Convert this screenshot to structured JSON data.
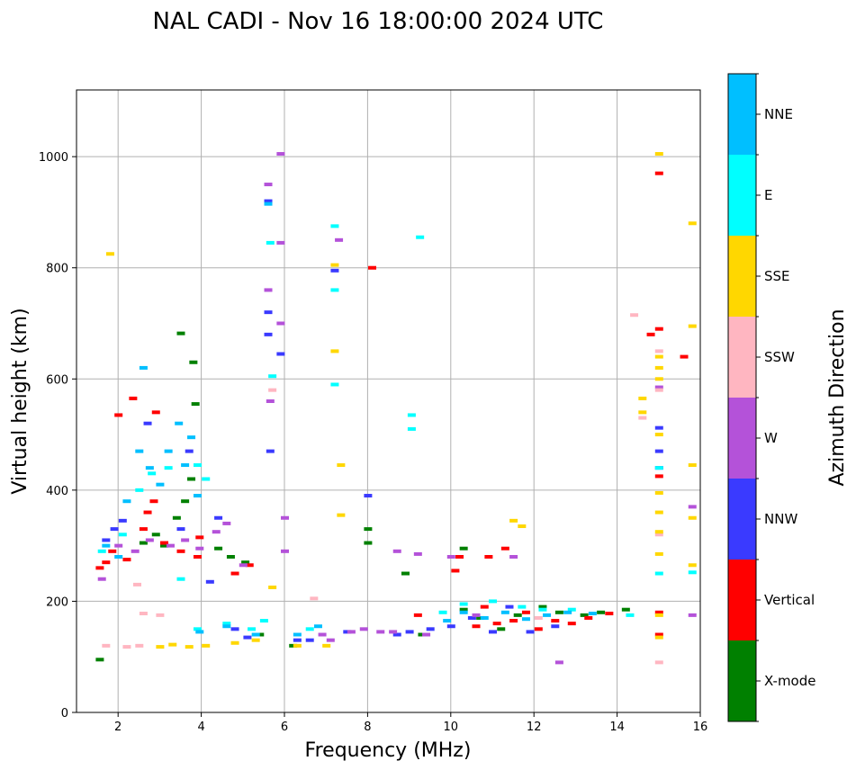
{
  "chart_data": {
    "type": "scatter",
    "title": "NAL CADI - Nov 16 18:00:00 2024 UTC",
    "xlabel": "Frequency (MHz)",
    "ylabel": "Virtual height (km)",
    "xlim": [
      1.0,
      16.0
    ],
    "ylim": [
      0,
      1120
    ],
    "xticks": [
      "2",
      "4",
      "6",
      "8",
      "10",
      "12",
      "14",
      "16"
    ],
    "yticks": [
      "0",
      "200",
      "400",
      "600",
      "800",
      "1000"
    ],
    "grid": true,
    "colorbar": {
      "label": "Azimuth Direction",
      "categories": [
        {
          "name": "X-mode",
          "color": "#008000"
        },
        {
          "name": "Vertical",
          "color": "#ff0000"
        },
        {
          "name": "NNW",
          "color": "#3a3aff"
        },
        {
          "name": "W",
          "color": "#b452d9"
        },
        {
          "name": "SSW",
          "color": "#ffb6c1"
        },
        {
          "name": "SSE",
          "color": "#ffd700"
        },
        {
          "name": "E",
          "color": "#00ffff"
        },
        {
          "name": "NNE",
          "color": "#00bfff"
        }
      ]
    },
    "series": [
      {
        "name": "X-mode",
        "points": [
          [
            1.55,
            95
          ],
          [
            2.6,
            305
          ],
          [
            2.9,
            320
          ],
          [
            3.1,
            300
          ],
          [
            3.4,
            350
          ],
          [
            3.6,
            380
          ],
          [
            3.75,
            420
          ],
          [
            3.85,
            555
          ],
          [
            3.8,
            630
          ],
          [
            3.5,
            682
          ],
          [
            4.4,
            295
          ],
          [
            4.7,
            280
          ],
          [
            5.05,
            270
          ],
          [
            5.4,
            140
          ],
          [
            6.2,
            120
          ],
          [
            8.0,
            330
          ],
          [
            8.0,
            305
          ],
          [
            8.9,
            250
          ],
          [
            9.3,
            140
          ],
          [
            10.3,
            185
          ],
          [
            10.3,
            295
          ],
          [
            10.7,
            170
          ],
          [
            11.2,
            150
          ],
          [
            11.6,
            175
          ],
          [
            12.2,
            190
          ],
          [
            12.6,
            180
          ],
          [
            13.2,
            175
          ],
          [
            13.6,
            180
          ],
          [
            14.2,
            185
          ]
        ]
      },
      {
        "name": "Vertical",
        "points": [
          [
            1.55,
            260
          ],
          [
            1.7,
            270
          ],
          [
            1.85,
            290
          ],
          [
            2.0,
            535
          ],
          [
            2.2,
            275
          ],
          [
            2.35,
            565
          ],
          [
            2.6,
            330
          ],
          [
            2.7,
            360
          ],
          [
            2.85,
            380
          ],
          [
            2.9,
            540
          ],
          [
            3.1,
            305
          ],
          [
            3.5,
            290
          ],
          [
            3.9,
            280
          ],
          [
            3.95,
            315
          ],
          [
            4.8,
            250
          ],
          [
            5.15,
            265
          ],
          [
            8.1,
            800
          ],
          [
            9.2,
            175
          ],
          [
            10.1,
            255
          ],
          [
            10.2,
            280
          ],
          [
            10.6,
            155
          ],
          [
            10.8,
            190
          ],
          [
            10.9,
            280
          ],
          [
            11.1,
            160
          ],
          [
            11.3,
            295
          ],
          [
            11.5,
            165
          ],
          [
            11.8,
            180
          ],
          [
            12.1,
            150
          ],
          [
            12.5,
            165
          ],
          [
            12.9,
            160
          ],
          [
            13.3,
            170
          ],
          [
            13.8,
            178
          ],
          [
            14.8,
            680
          ],
          [
            15.0,
            690
          ],
          [
            15.0,
            180
          ],
          [
            15.0,
            140
          ],
          [
            15.6,
            640
          ],
          [
            15.0,
            970
          ],
          [
            15.0,
            425
          ]
        ]
      },
      {
        "name": "NNW",
        "points": [
          [
            1.7,
            310
          ],
          [
            1.9,
            330
          ],
          [
            2.1,
            345
          ],
          [
            2.7,
            520
          ],
          [
            3.5,
            330
          ],
          [
            3.7,
            470
          ],
          [
            4.2,
            235
          ],
          [
            4.4,
            350
          ],
          [
            4.8,
            150
          ],
          [
            5.1,
            135
          ],
          [
            5.6,
            720
          ],
          [
            5.6,
            680
          ],
          [
            5.65,
            470
          ],
          [
            5.6,
            920
          ],
          [
            5.9,
            645
          ],
          [
            6.3,
            130
          ],
          [
            6.6,
            130
          ],
          [
            7.2,
            795
          ],
          [
            7.5,
            145
          ],
          [
            8.0,
            390
          ],
          [
            8.7,
            140
          ],
          [
            9.0,
            145
          ],
          [
            9.5,
            150
          ],
          [
            10.0,
            155
          ],
          [
            10.5,
            170
          ],
          [
            11.0,
            145
          ],
          [
            11.4,
            190
          ],
          [
            11.9,
            145
          ],
          [
            12.5,
            155
          ],
          [
            15.0,
            470
          ],
          [
            15.0,
            512
          ],
          [
            15.0,
            440
          ]
        ]
      },
      {
        "name": "W",
        "points": [
          [
            1.6,
            240
          ],
          [
            2.0,
            300
          ],
          [
            2.4,
            290
          ],
          [
            2.75,
            310
          ],
          [
            3.25,
            300
          ],
          [
            3.6,
            310
          ],
          [
            3.95,
            295
          ],
          [
            4.35,
            325
          ],
          [
            4.6,
            340
          ],
          [
            5.0,
            265
          ],
          [
            5.6,
            950
          ],
          [
            5.6,
            760
          ],
          [
            5.65,
            560
          ],
          [
            5.9,
            1005
          ],
          [
            5.9,
            845
          ],
          [
            5.9,
            700
          ],
          [
            6.0,
            350
          ],
          [
            6.0,
            290
          ],
          [
            6.9,
            140
          ],
          [
            7.1,
            130
          ],
          [
            7.3,
            850
          ],
          [
            7.6,
            145
          ],
          [
            7.9,
            150
          ],
          [
            8.3,
            145
          ],
          [
            8.6,
            145
          ],
          [
            8.7,
            290
          ],
          [
            9.2,
            285
          ],
          [
            9.4,
            140
          ],
          [
            10.0,
            280
          ],
          [
            10.6,
            175
          ],
          [
            11.5,
            280
          ],
          [
            12.6,
            90
          ],
          [
            15.0,
            585
          ],
          [
            15.8,
            370
          ],
          [
            15.8,
            175
          ]
        ]
      },
      {
        "name": "SSW",
        "points": [
          [
            1.7,
            120
          ],
          [
            2.2,
            118
          ],
          [
            2.5,
            120
          ],
          [
            2.45,
            230
          ],
          [
            2.6,
            178
          ],
          [
            3.0,
            175
          ],
          [
            5.7,
            580
          ],
          [
            6.7,
            205
          ],
          [
            12.1,
            170
          ],
          [
            14.4,
            715
          ],
          [
            14.6,
            530
          ],
          [
            15.0,
            90
          ],
          [
            15.0,
            320
          ],
          [
            15.0,
            580
          ],
          [
            15.0,
            650
          ]
        ]
      },
      {
        "name": "SSE",
        "points": [
          [
            1.8,
            825
          ],
          [
            3.0,
            118
          ],
          [
            3.3,
            122
          ],
          [
            3.7,
            118
          ],
          [
            4.1,
            120
          ],
          [
            4.8,
            125
          ],
          [
            5.3,
            130
          ],
          [
            5.7,
            225
          ],
          [
            6.3,
            120
          ],
          [
            7.0,
            120
          ],
          [
            7.2,
            805
          ],
          [
            7.2,
            650
          ],
          [
            7.35,
            445
          ],
          [
            7.35,
            355
          ],
          [
            11.5,
            345
          ],
          [
            11.7,
            335
          ],
          [
            14.6,
            565
          ],
          [
            14.6,
            540
          ],
          [
            15.0,
            1005
          ],
          [
            15.0,
            640
          ],
          [
            15.0,
            620
          ],
          [
            15.0,
            600
          ],
          [
            15.0,
            500
          ],
          [
            15.0,
            395
          ],
          [
            15.0,
            360
          ],
          [
            15.0,
            325
          ],
          [
            15.0,
            285
          ],
          [
            15.0,
            175
          ],
          [
            15.0,
            135
          ],
          [
            15.8,
            880
          ],
          [
            15.8,
            695
          ],
          [
            15.8,
            445
          ],
          [
            15.8,
            350
          ],
          [
            15.8,
            265
          ]
        ]
      },
      {
        "name": "E",
        "points": [
          [
            1.6,
            290
          ],
          [
            2.1,
            320
          ],
          [
            2.5,
            400
          ],
          [
            2.8,
            430
          ],
          [
            3.2,
            440
          ],
          [
            3.5,
            240
          ],
          [
            3.9,
            445
          ],
          [
            4.1,
            420
          ],
          [
            3.9,
            150
          ],
          [
            4.6,
            160
          ],
          [
            5.2,
            150
          ],
          [
            5.5,
            165
          ],
          [
            5.65,
            845
          ],
          [
            5.7,
            605
          ],
          [
            6.6,
            150
          ],
          [
            7.2,
            875
          ],
          [
            7.2,
            760
          ],
          [
            7.2,
            590
          ],
          [
            9.05,
            535
          ],
          [
            9.05,
            510
          ],
          [
            9.25,
            855
          ],
          [
            9.8,
            180
          ],
          [
            10.3,
            195
          ],
          [
            11.0,
            200
          ],
          [
            11.7,
            190
          ],
          [
            12.2,
            185
          ],
          [
            12.9,
            185
          ],
          [
            14.3,
            175
          ],
          [
            15.0,
            440
          ],
          [
            15.0,
            250
          ],
          [
            15.8,
            252
          ]
        ]
      },
      {
        "name": "NNE",
        "points": [
          [
            1.7,
            300
          ],
          [
            2.0,
            280
          ],
          [
            2.2,
            380
          ],
          [
            2.5,
            470
          ],
          [
            2.6,
            620
          ],
          [
            2.75,
            440
          ],
          [
            3.0,
            410
          ],
          [
            3.2,
            470
          ],
          [
            3.45,
            520
          ],
          [
            3.6,
            445
          ],
          [
            3.75,
            495
          ],
          [
            3.9,
            390
          ],
          [
            3.95,
            145
          ],
          [
            4.6,
            155
          ],
          [
            5.3,
            140
          ],
          [
            5.6,
            915
          ],
          [
            6.3,
            140
          ],
          [
            6.8,
            155
          ],
          [
            9.9,
            165
          ],
          [
            10.3,
            180
          ],
          [
            10.8,
            170
          ],
          [
            11.3,
            180
          ],
          [
            11.8,
            168
          ],
          [
            12.3,
            175
          ],
          [
            12.8,
            180
          ],
          [
            13.4,
            178
          ]
        ]
      }
    ]
  }
}
